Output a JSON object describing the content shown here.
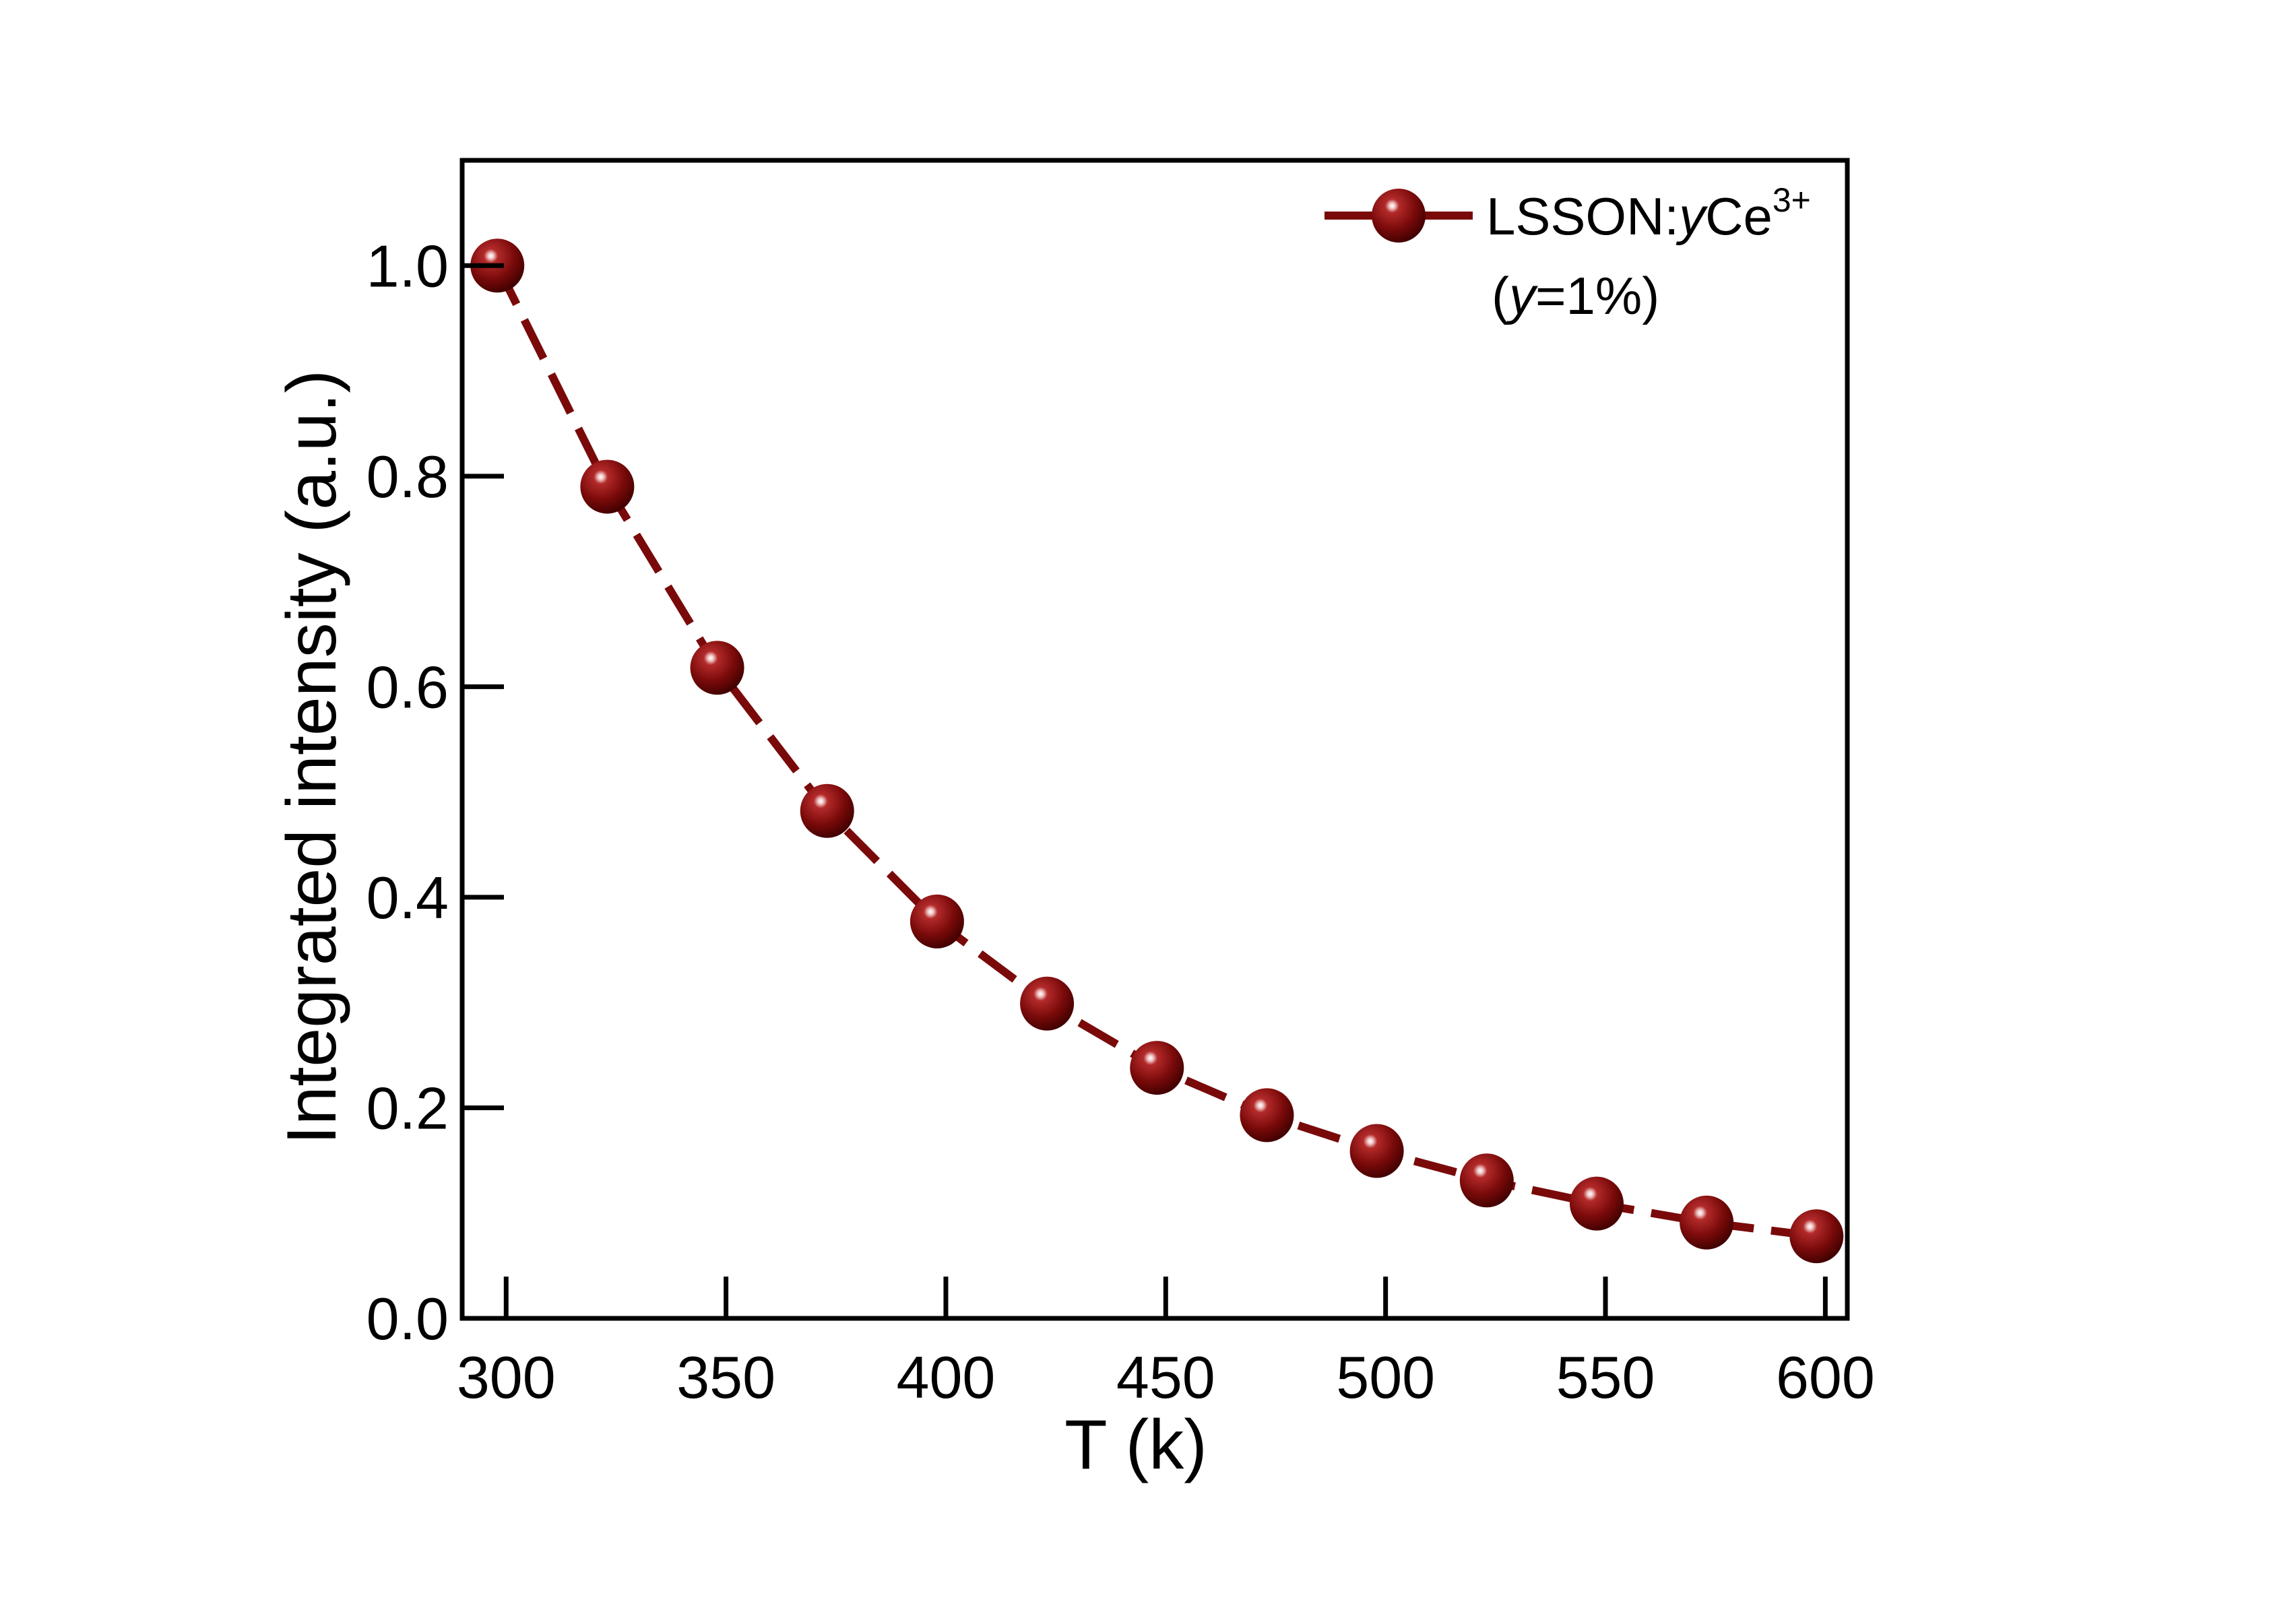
{
  "chart_data": {
    "type": "line",
    "title": "",
    "xlabel": "T (k)",
    "ylabel": "Integrated intensity (a.u.)",
    "xlim": [
      290,
      605
    ],
    "ylim": [
      0.0,
      1.1
    ],
    "x_ticks": [
      300,
      350,
      400,
      450,
      500,
      550,
      600
    ],
    "x_tick_labels": [
      "300",
      "350",
      "400",
      "450",
      "500",
      "550",
      "600"
    ],
    "y_ticks": [
      0.0,
      0.2,
      0.4,
      0.6,
      0.8,
      1.0
    ],
    "y_tick_labels": [
      "0.0",
      "0.2",
      "0.4",
      "0.6",
      "0.8",
      "1.0"
    ],
    "grid": false,
    "legend_position": "top-right",
    "series": [
      {
        "name": "LSSON:yCe3+ (y=1%)",
        "color": "#7a0a0a",
        "line_style": "dashed",
        "marker": "sphere",
        "x": [
          298,
          323,
          348,
          373,
          398,
          423,
          448,
          473,
          498,
          523,
          548,
          573,
          598
        ],
        "y": [
          1.0,
          0.79,
          0.618,
          0.482,
          0.377,
          0.299,
          0.238,
          0.193,
          0.159,
          0.131,
          0.109,
          0.091,
          0.078
        ]
      }
    ],
    "legend": {
      "label_prefix": "LSSON:",
      "label_italic": "y",
      "label_element": "Ce",
      "label_superscript": "3+",
      "sublabel_open": "(",
      "sublabel_italic": "y",
      "sublabel_rest": "=1%)"
    }
  }
}
